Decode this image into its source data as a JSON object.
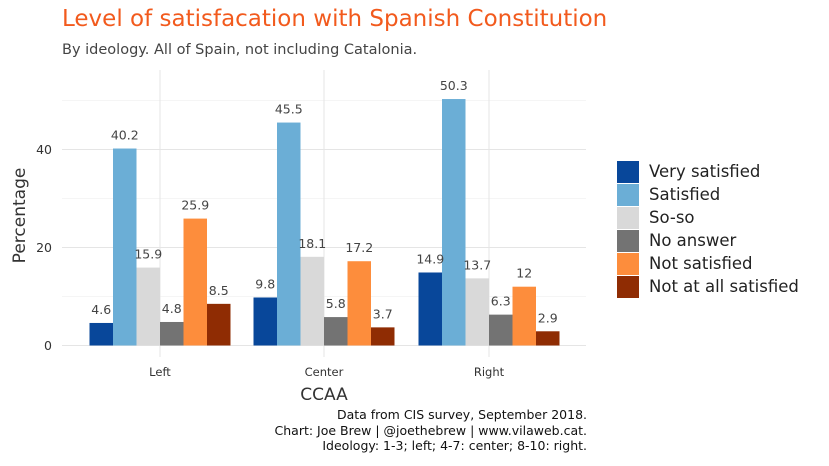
{
  "title": "Level of satisfacation with Spanish Constitution",
  "subtitle": "By ideology. All of Spain, not including Catalonia.",
  "caption": [
    "Data from CIS survey, September 2018.",
    "Chart: Joe Brew | @joethebrew | www.vilaweb.cat.",
    "Ideology: 1-3; left; 4-7: center; 8-10: right."
  ],
  "colors": {
    "title": "#f25a1d",
    "grid": "#e5e5e5",
    "series": [
      "#08479a",
      "#6baed6",
      "#d9d9d9",
      "#737373",
      "#fd8d3c",
      "#8f2c03"
    ]
  },
  "chart_data": {
    "type": "bar",
    "xlabel": "CCAA",
    "ylabel": "Percentage",
    "categories": [
      "Left",
      "Center",
      "Right"
    ],
    "ylim": [
      0,
      55
    ],
    "yticks": [
      0,
      20,
      40
    ],
    "grid": true,
    "legend_position": "right",
    "series": [
      {
        "name": "Very satisfied",
        "values": [
          4.6,
          9.8,
          14.9
        ],
        "labels": [
          "4.6",
          "9.8",
          "14.9"
        ]
      },
      {
        "name": "Satisfied",
        "values": [
          40.2,
          45.5,
          50.3
        ],
        "labels": [
          "40.2",
          "45.5",
          "50.3"
        ]
      },
      {
        "name": "So-so",
        "values": [
          15.9,
          18.1,
          13.7
        ],
        "labels": [
          "15.9",
          "18.1",
          "13.7"
        ]
      },
      {
        "name": "No answer",
        "values": [
          4.8,
          5.8,
          6.3
        ],
        "labels": [
          "4.8",
          "5.8",
          "6.3"
        ]
      },
      {
        "name": "Not satisfied",
        "values": [
          25.9,
          17.2,
          12
        ],
        "labels": [
          "25.9",
          "17.2",
          "12"
        ]
      },
      {
        "name": "Not at all satisfied",
        "values": [
          8.5,
          3.7,
          2.9
        ],
        "labels": [
          "8.5",
          "3.7",
          "2.9"
        ]
      }
    ]
  }
}
